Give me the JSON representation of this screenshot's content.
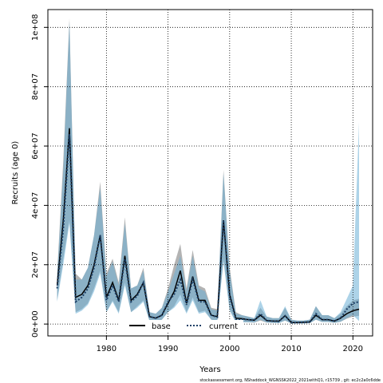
{
  "chart_data": {
    "type": "line",
    "xlabel": "Years",
    "ylabel": "Recruits (age 0)",
    "xlim": [
      1970.5,
      2023.2
    ],
    "ylim": [
      -4000000,
      106000000
    ],
    "xticks": [
      1980,
      1990,
      2000,
      2010,
      2020
    ],
    "xtick_labels": [
      "1980",
      "1990",
      "2000",
      "2010",
      "2020"
    ],
    "yticks": [
      0,
      20000000,
      40000000,
      60000000,
      80000000,
      100000000
    ],
    "ytick_labels": [
      "0e+00",
      "2e+07",
      "4e+07",
      "6e+07",
      "8e+07",
      "1e+08"
    ],
    "grid": true,
    "legend_position": "bottom",
    "x": [
      1972,
      1973,
      1974,
      1975,
      1976,
      1977,
      1978,
      1979,
      1980,
      1981,
      1982,
      1983,
      1984,
      1985,
      1986,
      1987,
      1988,
      1989,
      1990,
      1991,
      1992,
      1993,
      1994,
      1995,
      1996,
      1997,
      1998,
      1999,
      2000,
      2001,
      2002,
      2003,
      2004,
      2005,
      2006,
      2007,
      2008,
      2009,
      2010,
      2011,
      2012,
      2013,
      2014,
      2015,
      2016,
      2017,
      2018,
      2019,
      2020,
      2021
    ],
    "series": [
      {
        "name": "base",
        "color": "#000000",
        "band_color": "#999999",
        "values": [
          13000000,
          35000000,
          66000000,
          9000000,
          10000000,
          13000000,
          20000000,
          30000000,
          9000000,
          14000000,
          8000000,
          23000000,
          8000000,
          10000000,
          14000000,
          2500000,
          2000000,
          3000000,
          7000000,
          11000000,
          18000000,
          7000000,
          16000000,
          8000000,
          8000000,
          3000000,
          2500000,
          35000000,
          10000000,
          2000000,
          1800000,
          1500000,
          1300000,
          3000000,
          1200000,
          1000000,
          1000000,
          2800000,
          500000,
          500000,
          600000,
          700000,
          3000000,
          1500000,
          1500000,
          1000000,
          2000000,
          3500000,
          4500000,
          5000000
        ],
        "upper": [
          17000000,
          55000000,
          103000000,
          17000000,
          15000000,
          19000000,
          30000000,
          48000000,
          17000000,
          22000000,
          14000000,
          36000000,
          12000000,
          13000000,
          19000000,
          4000000,
          3500000,
          5500000,
          12000000,
          20000000,
          27000000,
          12000000,
          25000000,
          13000000,
          12000000,
          5500000,
          5000000,
          52000000,
          19000000,
          4000000,
          3000000,
          2500000,
          2000000,
          5500000,
          2500000,
          2000000,
          2000000,
          5500000,
          1500000,
          1200000,
          1200000,
          1500000,
          6000000,
          3000000,
          3000000,
          2000000,
          3500000,
          6000000,
          8000000,
          8500000
        ],
        "lower": [
          8000000,
          22000000,
          35000000,
          4000000,
          5000000,
          7000000,
          12000000,
          18000000,
          4000000,
          8000000,
          4000000,
          14000000,
          4000000,
          6000000,
          8000000,
          1000000,
          700000,
          1500000,
          4000000,
          6000000,
          10000000,
          4000000,
          9000000,
          4000000,
          4500000,
          1500000,
          1200000,
          22000000,
          5000000,
          700000,
          700000,
          600000,
          500000,
          1200000,
          500000,
          400000,
          400000,
          1200000,
          200000,
          200000,
          200000,
          300000,
          1500000,
          700000,
          700000,
          400000,
          800000,
          1800000,
          2500000,
          2800000
        ]
      },
      {
        "name": "current",
        "color": "#1c3f66",
        "band_color": "#6aaed6",
        "values": [
          12000000,
          32000000,
          64000000,
          7500000,
          9000000,
          12000000,
          19000000,
          30000000,
          8000000,
          13000000,
          7500000,
          22000000,
          7500000,
          9500000,
          14000000,
          2500000,
          2000000,
          3000000,
          7500000,
          10000000,
          15000000,
          6500000,
          15000000,
          7500000,
          7500000,
          3000000,
          2300000,
          35000000,
          9500000,
          1500000,
          1600000,
          1500000,
          1300000,
          3500000,
          1200000,
          1000000,
          900000,
          2800000,
          500000,
          500000,
          600000,
          700000,
          3500000,
          1500000,
          1500000,
          1000000,
          2000000,
          5000000,
          7000000,
          7500000
        ],
        "upper": [
          16000000,
          52000000,
          102000000,
          15000000,
          15000000,
          19000000,
          30000000,
          46000000,
          16000000,
          21000000,
          13000000,
          34000000,
          12000000,
          13000000,
          18000000,
          4000000,
          3500000,
          5500000,
          11000000,
          17000000,
          23000000,
          11000000,
          23000000,
          12000000,
          11000000,
          5000000,
          4500000,
          51000000,
          18000000,
          3500000,
          3000000,
          2500000,
          2000000,
          8000000,
          2500000,
          2000000,
          2000000,
          6000000,
          1500000,
          1200000,
          1200000,
          1500000,
          6000000,
          3000000,
          3000000,
          2000000,
          4000000,
          8500000,
          13000000,
          68000000
        ],
        "lower": [
          7500000,
          20000000,
          34000000,
          3500000,
          4500000,
          6500000,
          11000000,
          17000000,
          4000000,
          7500000,
          3500000,
          13000000,
          4000000,
          5500000,
          7500000,
          1000000,
          700000,
          1500000,
          4000000,
          5500000,
          8000000,
          3500000,
          8000000,
          3500000,
          4000000,
          1500000,
          1000000,
          21000000,
          4500000,
          500000,
          600000,
          600000,
          500000,
          1500000,
          500000,
          400000,
          300000,
          1200000,
          200000,
          200000,
          200000,
          300000,
          1500000,
          700000,
          700000,
          400000,
          800000,
          2000000,
          3000000,
          1000000
        ]
      }
    ],
    "footnote": "stockassessment.org, NShaddock_WGNSSK2022_2021withQ1, r15739 , git: ec2c2a0c6dde"
  }
}
